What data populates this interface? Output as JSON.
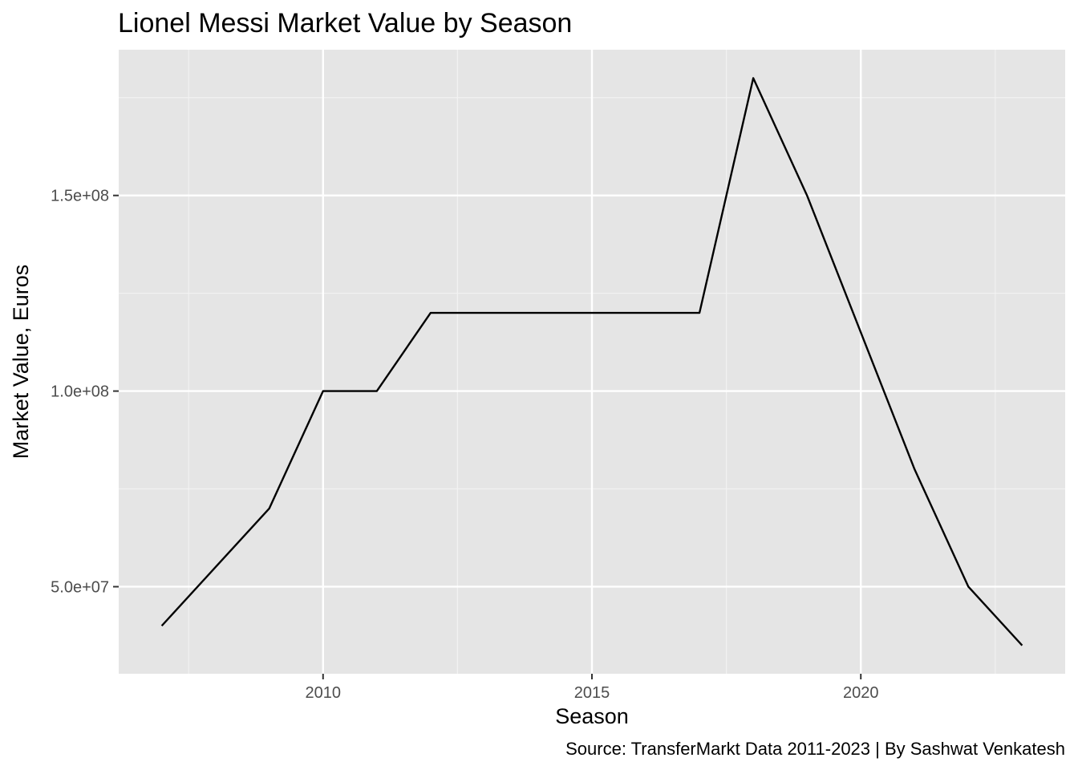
{
  "chart_data": {
    "type": "line",
    "title": "Lionel Messi Market Value by Season",
    "xlabel": "Season",
    "ylabel": "Market Value, Euros",
    "caption": "Source: TransferMarkt Data 2011-2023 | By Sashwat Venkatesh",
    "x": [
      2007,
      2008,
      2009,
      2010,
      2011,
      2012,
      2013,
      2014,
      2015,
      2016,
      2017,
      2018,
      2019,
      2020,
      2021,
      2022,
      2023
    ],
    "series": [
      {
        "values": [
          40000000,
          55000000,
          70000000,
          100000000,
          100000000,
          120000000,
          120000000,
          120000000,
          120000000,
          120000000,
          120000000,
          180000000,
          150000000,
          115000000,
          80000000,
          50000000,
          35000000
        ]
      }
    ],
    "xlim": [
      2006.2,
      2023.8
    ],
    "ylim": [
      27750000,
      187250000
    ],
    "x_ticks": [
      2010,
      2015,
      2020
    ],
    "x_tick_labels": [
      "2010",
      "2015",
      "2020"
    ],
    "x_minor_ticks": [
      2007.5,
      2012.5,
      2017.5,
      2022.5
    ],
    "y_ticks": [
      50000000,
      100000000,
      150000000
    ],
    "y_tick_labels": [
      "5.0e+07",
      "1.0e+08",
      "1.5e+08"
    ],
    "y_minor_ticks": [
      75000000,
      125000000,
      175000000
    ],
    "grid": true,
    "legend": "none",
    "colors": {
      "panel_background": "#e5e5e5",
      "grid_major": "#ffffff",
      "grid_minor": "#f2f2f2",
      "line": "#000000",
      "tick_text": "#4d4d4d",
      "tick_mark": "#333333"
    }
  }
}
